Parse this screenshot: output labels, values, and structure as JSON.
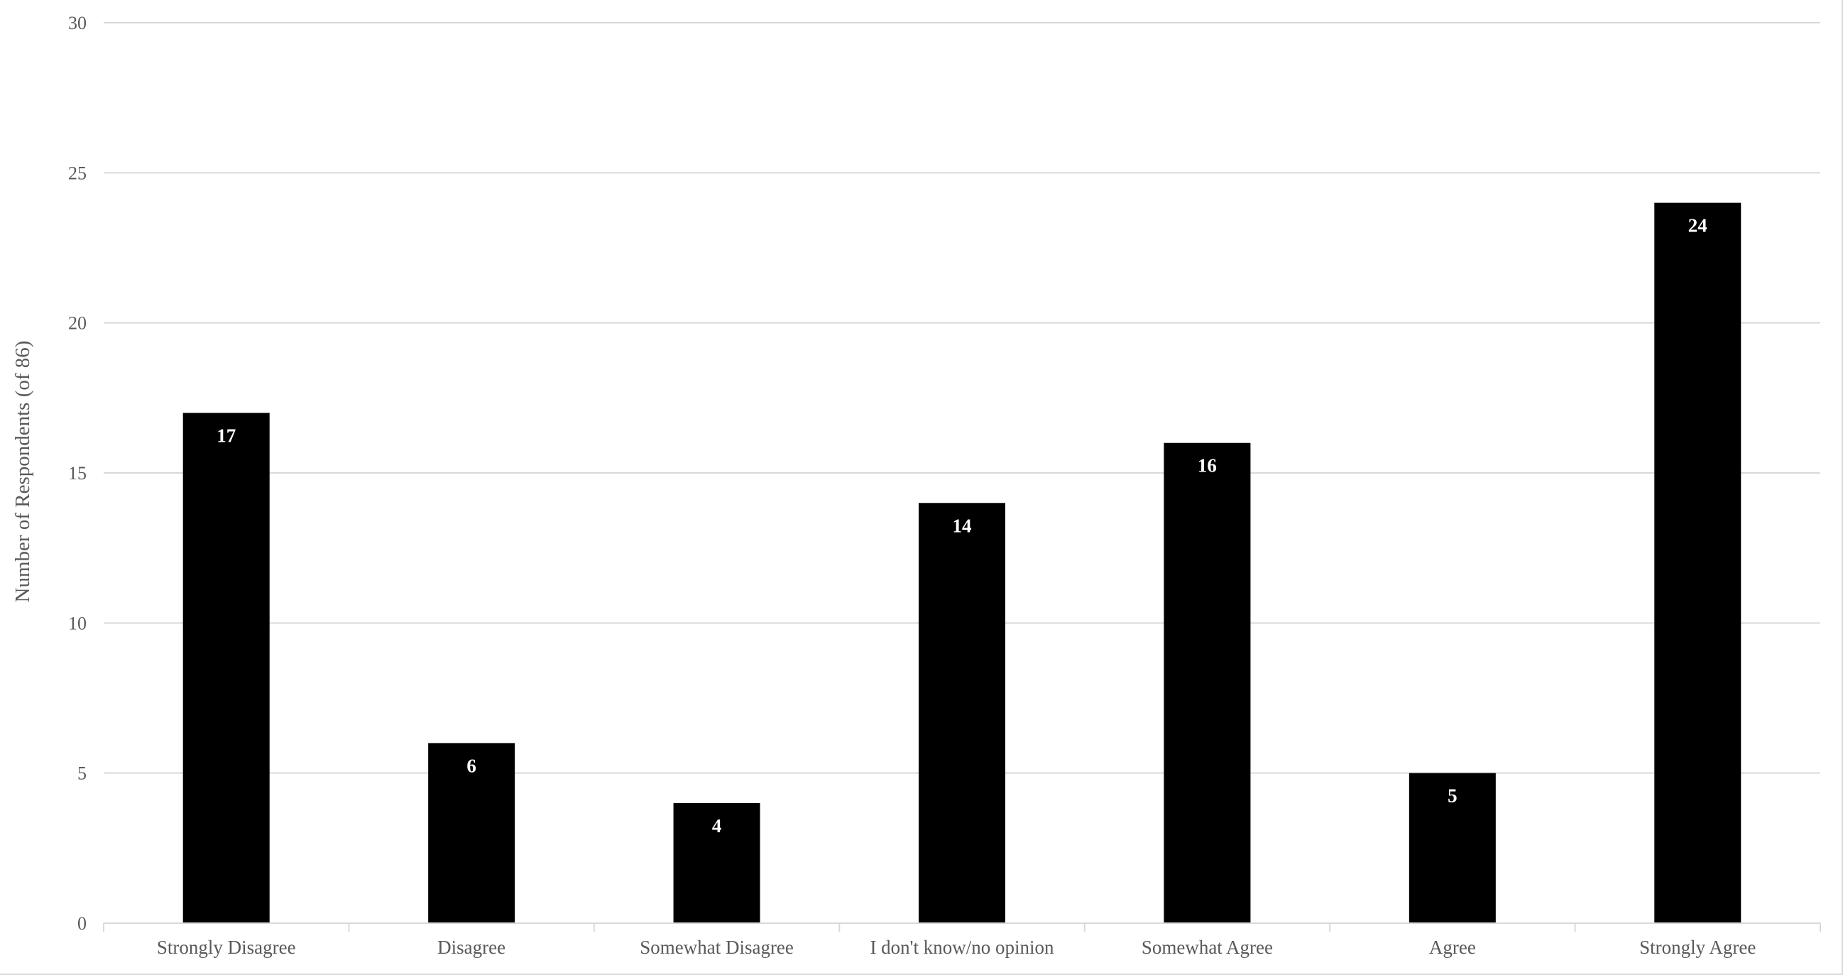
{
  "chart_data": {
    "type": "bar",
    "title": "",
    "xlabel": "",
    "ylabel": "Number of Respondents (of 86)",
    "categories": [
      "Strongly Disagree",
      "Disagree",
      "Somewhat Disagree",
      "I don't know/no opinion",
      "Somewhat Agree",
      "Agree",
      "Strongly Agree"
    ],
    "values": [
      17,
      6,
      4,
      14,
      16,
      5,
      24
    ],
    "data_labels": [
      "17",
      "6",
      "4",
      "14",
      "16",
      "5",
      "24"
    ],
    "ylim": [
      0,
      30
    ],
    "yticks": [
      0,
      5,
      10,
      15,
      20,
      25,
      30
    ],
    "ytick_labels": [
      "0",
      "5",
      "10",
      "15",
      "20",
      "25",
      "30"
    ],
    "grid": true,
    "legend": "none",
    "colors": {
      "bar": "#000000",
      "data_label": "#ffffff",
      "gridline": "#d9d9d9",
      "text": "#595959"
    }
  }
}
